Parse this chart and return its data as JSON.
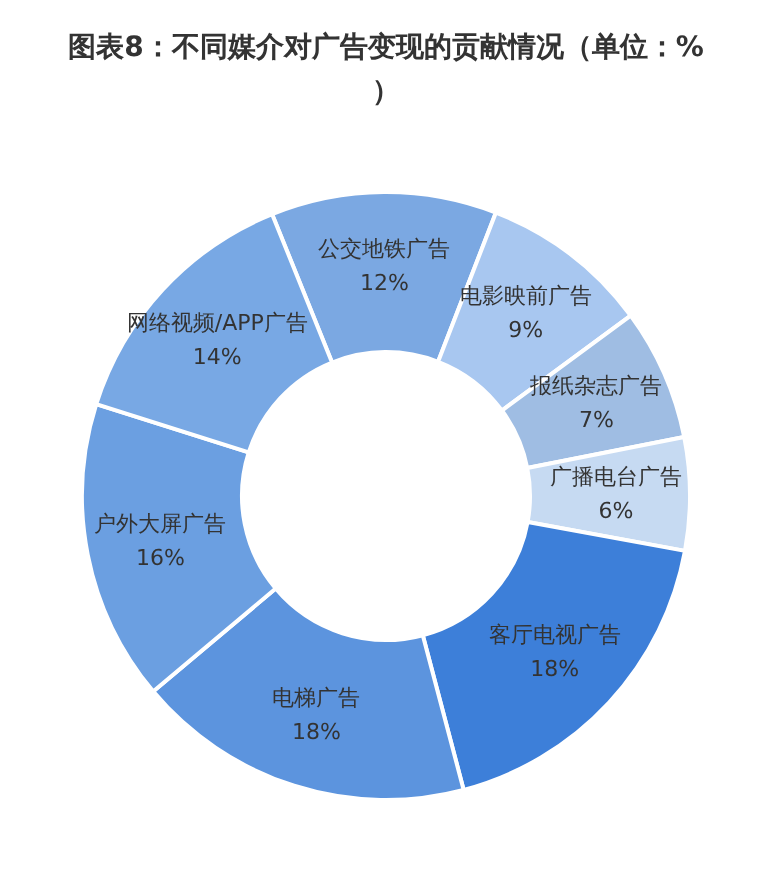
{
  "chart_data": {
    "type": "donut",
    "title": "图表8：不同媒介对广告变现的贡献情况（单位：%）",
    "categories": [
      "公交地铁广告",
      "电影映前广告",
      "报纸杂志广告",
      "广播电台广告",
      "客厅电视广告",
      "电梯广告",
      "户外大屏广告",
      "网络视频/APP广告"
    ],
    "values": [
      12,
      9,
      7,
      6,
      18,
      18,
      16,
      14
    ],
    "value_labels": [
      "12%",
      "9%",
      "7%",
      "6%",
      "18%",
      "18%",
      "16%",
      "14%"
    ],
    "colors": [
      "#7ba8e2",
      "#a8c7f0",
      "#9fbde3",
      "#c6daf2",
      "#3d7fd9",
      "#5c94de",
      "#6b9fe1",
      "#78a8e4"
    ],
    "legend": false
  }
}
